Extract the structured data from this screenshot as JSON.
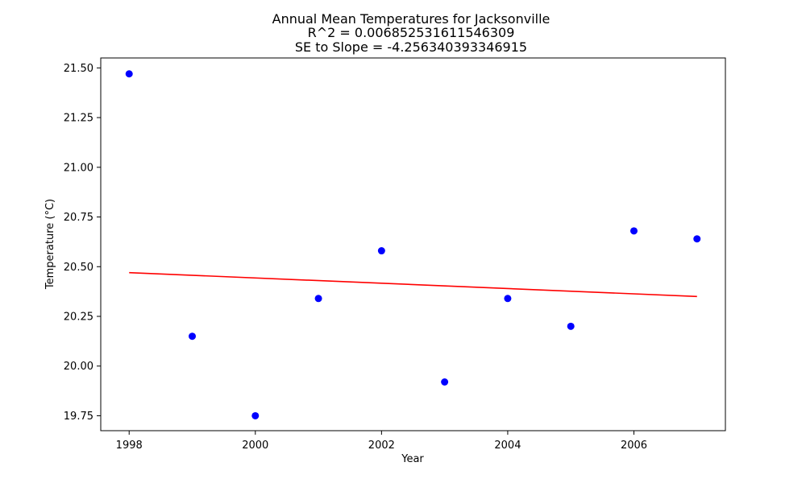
{
  "chart_data": {
    "type": "scatter",
    "title_lines": [
      "Annual Mean Temperatures for Jacksonville",
      "R^2 = 0.006852531611546309",
      "SE to Slope = -4.256340393346915"
    ],
    "xlabel": "Year",
    "ylabel": "Temperature (°C)",
    "xlim": [
      1997.55,
      2007.45
    ],
    "ylim": [
      19.675,
      21.55
    ],
    "x_ticks": [
      1998,
      2000,
      2002,
      2004,
      2006
    ],
    "y_ticks": [
      19.75,
      20.0,
      20.25,
      20.5,
      20.75,
      21.0,
      21.25,
      21.5
    ],
    "x_tick_labels": [
      "1998",
      "2000",
      "2002",
      "2004",
      "2006"
    ],
    "y_tick_labels": [
      "19.75",
      "20.00",
      "20.25",
      "20.50",
      "20.75",
      "21.00",
      "21.25",
      "21.50"
    ],
    "grid": false,
    "series": [
      {
        "kind": "points",
        "color": "#0000ff",
        "x": [
          1998,
          1999,
          2000,
          2001,
          2002,
          2003,
          2004,
          2005,
          2006,
          2007
        ],
        "y": [
          21.47,
          20.15,
          19.75,
          20.34,
          20.58,
          19.92,
          20.34,
          20.2,
          20.68,
          20.64
        ]
      },
      {
        "kind": "line",
        "color": "#ff0000",
        "x": [
          1998,
          2007
        ],
        "y": [
          20.47,
          20.35
        ]
      }
    ]
  }
}
